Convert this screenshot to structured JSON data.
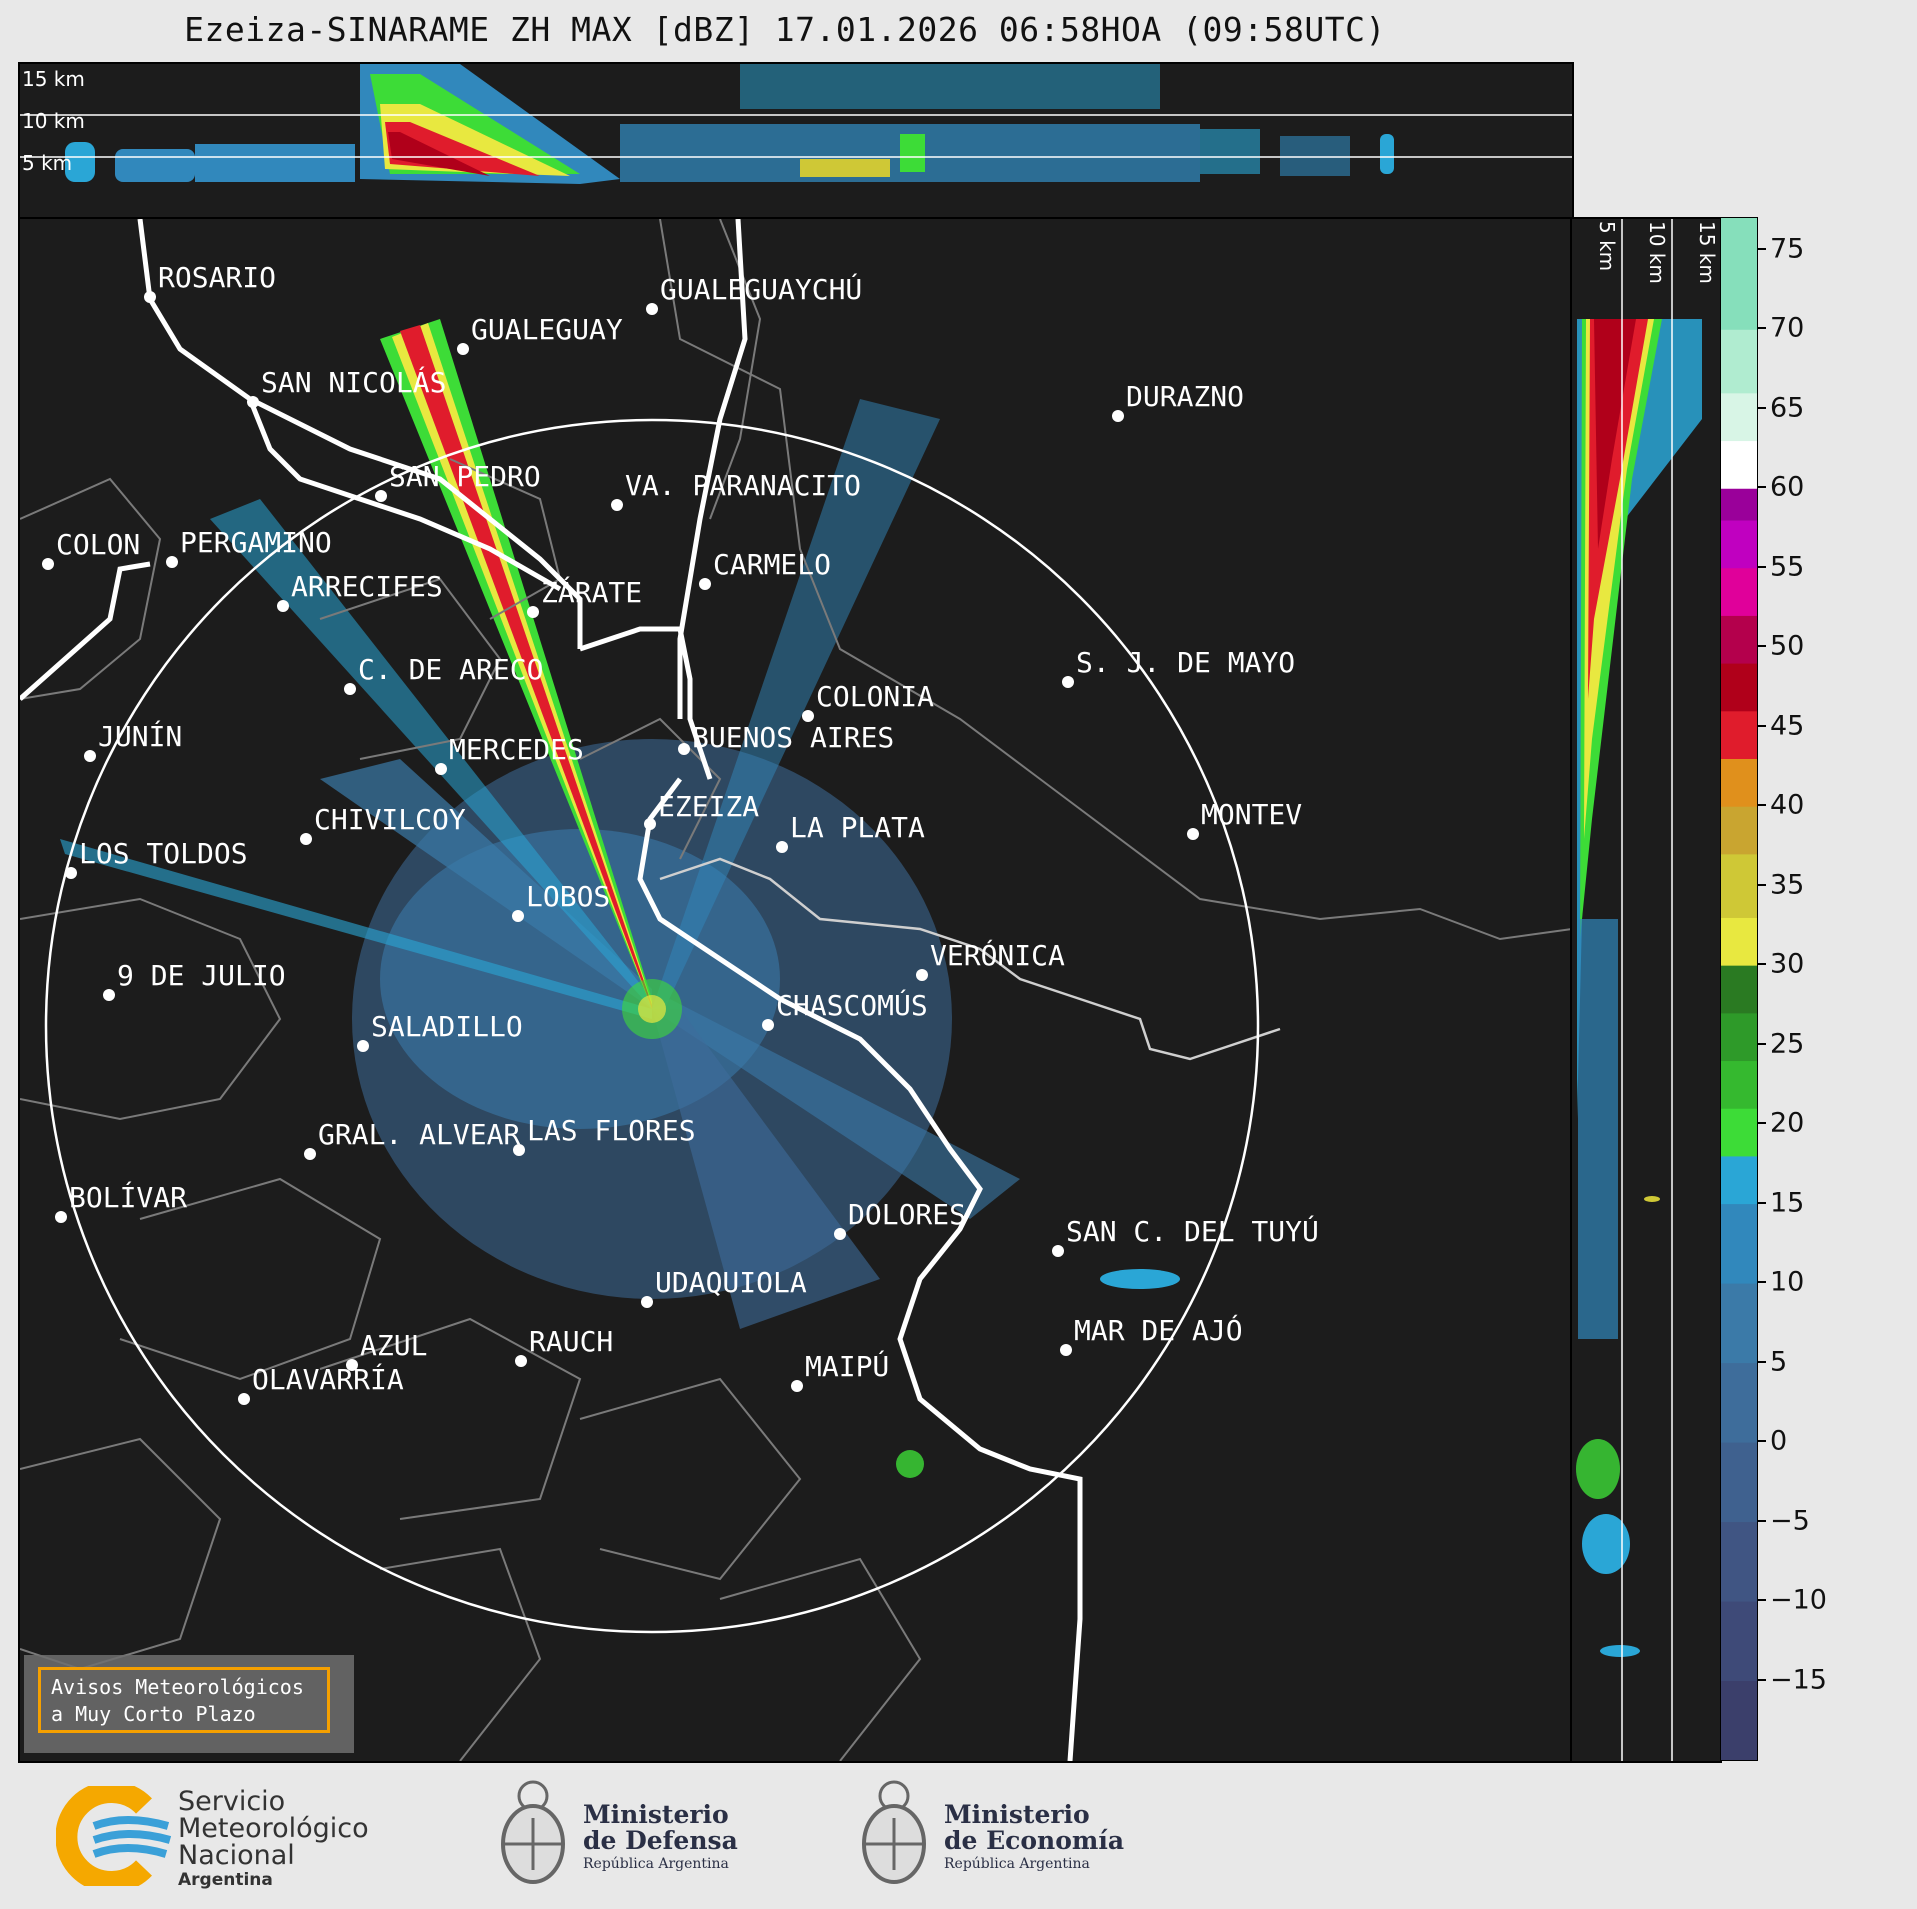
{
  "title": "Ezeiza-SINARAME ZH MAX [dBZ] 17.01.2026 06:58HOA (09:58UTC)",
  "altitude_labels": [
    "15 km",
    "10 km",
    "5 km"
  ],
  "side_altitude_labels": [
    "5 km",
    "10 km",
    "15 km"
  ],
  "cities": [
    {
      "name": "ROSARIO"
    },
    {
      "name": "GUALEGUAYCHÚ"
    },
    {
      "name": "GUALEGUAY"
    },
    {
      "name": "SAN NICOLÁS"
    },
    {
      "name": "DURAZNO"
    },
    {
      "name": "SAN PEDRO"
    },
    {
      "name": "VA. PARANACITO"
    },
    {
      "name": "COLON"
    },
    {
      "name": "PERGAMINO"
    },
    {
      "name": "CARMELO"
    },
    {
      "name": "ARRECIFES"
    },
    {
      "name": "ZÁRATE"
    },
    {
      "name": "S. J. DE MAYO"
    },
    {
      "name": "C. DE ARECO"
    },
    {
      "name": "COLONIA"
    },
    {
      "name": "JUNÍN"
    },
    {
      "name": "BUENOS AIRES"
    },
    {
      "name": "MERCEDES"
    },
    {
      "name": "MONTEV"
    },
    {
      "name": "EZEIZA"
    },
    {
      "name": "CHIVILCOY"
    },
    {
      "name": "LA PLATA"
    },
    {
      "name": "LOS TOLDOS"
    },
    {
      "name": "LOBOS"
    },
    {
      "name": "VERÓNICA"
    },
    {
      "name": "9 DE JULIO"
    },
    {
      "name": "CHASCOMÚS"
    },
    {
      "name": "SALADILLO"
    },
    {
      "name": "GRAL. ALVEAR"
    },
    {
      "name": "LAS FLORES"
    },
    {
      "name": "BOLÍVAR"
    },
    {
      "name": "DOLORES"
    },
    {
      "name": "SAN C. DEL TUYÚ"
    },
    {
      "name": "UDAQUIOLA"
    },
    {
      "name": "AZUL"
    },
    {
      "name": "RAUCH"
    },
    {
      "name": "MAR DE AJÓ"
    },
    {
      "name": "OLAVARRÍA"
    },
    {
      "name": "MAIPÚ"
    }
  ],
  "colorbar": {
    "unit": "dBZ",
    "min": -20,
    "max": 77,
    "ticks": [
      75,
      70,
      65,
      60,
      55,
      50,
      45,
      40,
      35,
      30,
      25,
      20,
      15,
      10,
      5,
      0,
      -5,
      -10,
      -15
    ],
    "tick_labels": [
      "75",
      "70",
      "65",
      "60",
      "55",
      "50",
      "45",
      "40",
      "35",
      "30",
      "25",
      "20",
      "15",
      "10",
      "5",
      "0",
      "−5",
      "−10",
      "−15"
    ],
    "bands": [
      {
        "from": -20,
        "to": -15,
        "color": "#3b3f6b"
      },
      {
        "from": -15,
        "to": -10,
        "color": "#3e4a78"
      },
      {
        "from": -10,
        "to": -5,
        "color": "#405583"
      },
      {
        "from": -5,
        "to": 0,
        "color": "#3f618f"
      },
      {
        "from": 0,
        "to": 5,
        "color": "#3e6d9b"
      },
      {
        "from": 5,
        "to": 10,
        "color": "#3b7aa8"
      },
      {
        "from": 10,
        "to": 15,
        "color": "#3188bc"
      },
      {
        "from": 15,
        "to": 18,
        "color": "#2aa6d6"
      },
      {
        "from": 18,
        "to": 21,
        "color": "#3ddc37"
      },
      {
        "from": 21,
        "to": 24,
        "color": "#35b92f"
      },
      {
        "from": 24,
        "to": 27,
        "color": "#2e9a29"
      },
      {
        "from": 27,
        "to": 30,
        "color": "#2a7a22"
      },
      {
        "from": 30,
        "to": 33,
        "color": "#e8e840"
      },
      {
        "from": 33,
        "to": 37,
        "color": "#cfc836"
      },
      {
        "from": 37,
        "to": 40,
        "color": "#c9a530"
      },
      {
        "from": 40,
        "to": 43,
        "color": "#e0901c"
      },
      {
        "from": 43,
        "to": 46,
        "color": "#e01c2c"
      },
      {
        "from": 46,
        "to": 49,
        "color": "#b0001a"
      },
      {
        "from": 49,
        "to": 52,
        "color": "#b4004c"
      },
      {
        "from": 52,
        "to": 55,
        "color": "#e0009a"
      },
      {
        "from": 55,
        "to": 58,
        "color": "#c000c0"
      },
      {
        "from": 58,
        "to": 60,
        "color": "#9a009a"
      },
      {
        "from": 60,
        "to": 63,
        "color": "#ffffff"
      },
      {
        "from": 63,
        "to": 66,
        "color": "#d8f5e6"
      },
      {
        "from": 66,
        "to": 70,
        "color": "#b0ecd0"
      },
      {
        "from": 70,
        "to": 77,
        "color": "#86dfbb"
      }
    ]
  },
  "avisos": {
    "line1": "Avisos Meteorológicos",
    "line2": "a Muy Corto Plazo"
  },
  "logos": {
    "smn": {
      "line1": "Servicio",
      "line2": "Meteorológico",
      "line3": "Nacional",
      "line4": "Argentina"
    },
    "defensa": {
      "line1": "Ministerio",
      "line2": "de Defensa",
      "line3": "República Argentina"
    },
    "economia": {
      "line1": "Ministerio",
      "line2": "de Economía",
      "line3": "República Argentina"
    }
  }
}
